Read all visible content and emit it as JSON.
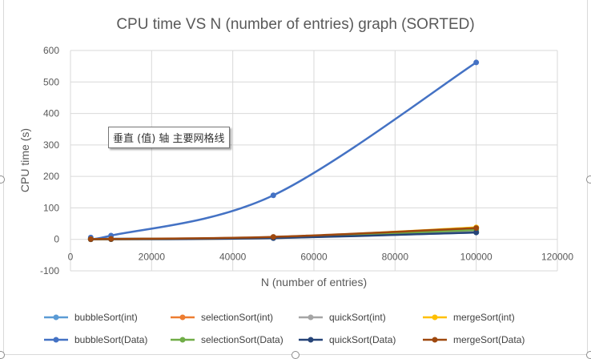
{
  "chart_data": {
    "type": "line",
    "title": "CPU time VS N (number of entries) graph (SORTED)",
    "xlabel": "N (number of entries)",
    "ylabel": "CPU time  (s)",
    "xlim": [
      0,
      120000
    ],
    "ylim": [
      -100,
      600
    ],
    "xticks": [
      0,
      20000,
      40000,
      60000,
      80000,
      100000,
      120000
    ],
    "yticks": [
      -100,
      0,
      100,
      200,
      300,
      400,
      500,
      600
    ],
    "grid": true,
    "legend_position": "bottom",
    "x": [
      5000,
      10000,
      50000,
      100000
    ],
    "series": [
      {
        "name": "bubbleSort(int)",
        "color": "#5b9bd5",
        "values": [
          1,
          2,
          5,
          22
        ]
      },
      {
        "name": "selectionSort(int)",
        "color": "#ed7d31",
        "values": [
          0.5,
          1,
          7,
          35
        ]
      },
      {
        "name": "quickSort(int)",
        "color": "#a5a5a5",
        "values": [
          0.2,
          0.5,
          4,
          28
        ]
      },
      {
        "name": "mergeSort(int)",
        "color": "#ffc000",
        "values": [
          0.3,
          0.6,
          6,
          38
        ]
      },
      {
        "name": "bubbleSort(Data)",
        "color": "#4472c4",
        "values": [
          6,
          12,
          140,
          562
        ]
      },
      {
        "name": "selectionSort(Data)",
        "color": "#70ad47",
        "values": [
          0.5,
          1,
          6,
          30
        ]
      },
      {
        "name": "quickSort(Data)",
        "color": "#264478",
        "values": [
          0.3,
          0.6,
          4,
          22
        ]
      },
      {
        "name": "mergeSort(Data)",
        "color": "#9e480e",
        "values": [
          0.8,
          1.5,
          8,
          36
        ]
      }
    ]
  },
  "tooltip_text": "垂直 (值) 轴 主要网格线"
}
